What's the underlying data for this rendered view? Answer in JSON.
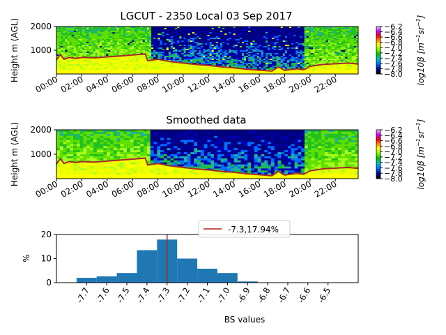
{
  "chart_data": [
    {
      "type": "heatmap",
      "title": "LGCUT - 2350 Local 03 Sep 2017",
      "ylabel": "Height m (AGL)",
      "yticks": [
        "1000",
        "2000"
      ],
      "ylim": [
        0,
        2000
      ],
      "xticks": [
        "00:00",
        "02:00",
        "04:00",
        "06:00",
        "08:00",
        "10:00",
        "12:00",
        "14:00",
        "16:00",
        "18:00",
        "20:00",
        "22:00"
      ],
      "xlim_hours": [
        0,
        23.8
      ],
      "colorbar": {
        "label_plain": "log10β [m",
        "label_sup1": "−1",
        "label_mid": "sr",
        "label_sup2": "−1",
        "label_end": "]",
        "ticks": [
          "−6.2",
          "−6.4",
          "−6.6",
          "−6.8",
          "−7.0",
          "−7.2",
          "−7.4",
          "−7.6",
          "−7.8",
          "−8.0"
        ],
        "range": [
          -8.0,
          -6.2
        ]
      },
      "boundary_layer_line": {
        "color": "#a52a2a",
        "hours": [
          0,
          0.3,
          0.6,
          1,
          1.5,
          2,
          3,
          4,
          5,
          6,
          7,
          7.2,
          8,
          9,
          10,
          11,
          12,
          13,
          14,
          15,
          16,
          17,
          17.5,
          18,
          19,
          19.5,
          20,
          21,
          22,
          23,
          23.8
        ],
        "height_m": [
          600,
          820,
          620,
          700,
          660,
          700,
          680,
          720,
          760,
          800,
          840,
          560,
          620,
          520,
          460,
          400,
          360,
          300,
          260,
          200,
          160,
          120,
          300,
          150,
          220,
          180,
          320,
          400,
          430,
          460,
          420
        ]
      }
    },
    {
      "type": "heatmap",
      "title": "Smoothed data",
      "ylabel": "Height m (AGL)",
      "yticks": [
        "1000",
        "2000"
      ],
      "ylim": [
        0,
        2000
      ],
      "xticks": [
        "00:00",
        "02:00",
        "04:00",
        "06:00",
        "08:00",
        "10:00",
        "12:00",
        "14:00",
        "16:00",
        "18:00",
        "20:00",
        "22:00"
      ],
      "xlim_hours": [
        0,
        23.8
      ],
      "colorbar": {
        "label_plain": "log10β [m",
        "label_sup1": "−1",
        "label_mid": "sr",
        "label_sup2": "−1",
        "label_end": "]",
        "ticks": [
          "−6.2",
          "−6.4",
          "−6.6",
          "−6.8",
          "−7.0",
          "−7.2",
          "−7.4",
          "−7.6",
          "−7.8",
          "−8.0"
        ],
        "range": [
          -8.0,
          -6.2
        ]
      },
      "boundary_layer_line": {
        "color": "#a52a2a",
        "hours": [
          0,
          0.3,
          0.6,
          1,
          1.5,
          2,
          3,
          4,
          5,
          6,
          7,
          7.2,
          8,
          9,
          10,
          11,
          12,
          13,
          14,
          15,
          16,
          17,
          17.5,
          18,
          19,
          19.5,
          20,
          21,
          22,
          23,
          23.8
        ],
        "height_m": [
          600,
          820,
          620,
          700,
          660,
          700,
          680,
          720,
          760,
          800,
          840,
          560,
          620,
          520,
          460,
          400,
          360,
          300,
          260,
          200,
          160,
          120,
          300,
          150,
          220,
          180,
          320,
          400,
          430,
          460,
          420
        ]
      }
    },
    {
      "type": "bar",
      "xlabel": "BS values",
      "ylabel": "%",
      "ylim": [
        0,
        20
      ],
      "yticks": [
        "0",
        "10",
        "20"
      ],
      "xlim": [
        -7.85,
        -6.35
      ],
      "xticks": [
        -7.7,
        -7.6,
        -7.5,
        -7.4,
        -7.3,
        -7.2,
        -7.1,
        -7.0,
        -6.9,
        -6.8,
        -6.7,
        -6.6,
        -6.5
      ],
      "xtick_labels": [
        "-7.7",
        "-7.6",
        "-7.5",
        "-7.4",
        "-7.3",
        "-7.2",
        "-7.1",
        "-7.0",
        "-6.9",
        "-6.8",
        "-6.7",
        "-6.6",
        "-6.5"
      ],
      "bin_width": 0.1,
      "bin_left_edges": [
        -7.75,
        -7.65,
        -7.55,
        -7.45,
        -7.35,
        -7.25,
        -7.15,
        -7.05,
        -6.95,
        -6.85,
        -6.75,
        -6.65,
        -6.55
      ],
      "values": [
        2.0,
        2.6,
        4.0,
        13.5,
        17.9,
        10.0,
        5.8,
        4.0,
        0.5,
        0.1,
        0.1,
        0.05,
        0.05
      ],
      "bar_color": "#1f77b4",
      "vline": {
        "x": -7.3,
        "color": "#b22222"
      },
      "legend": {
        "label": "-7.3,17.94%",
        "position": "top-center"
      }
    }
  ]
}
